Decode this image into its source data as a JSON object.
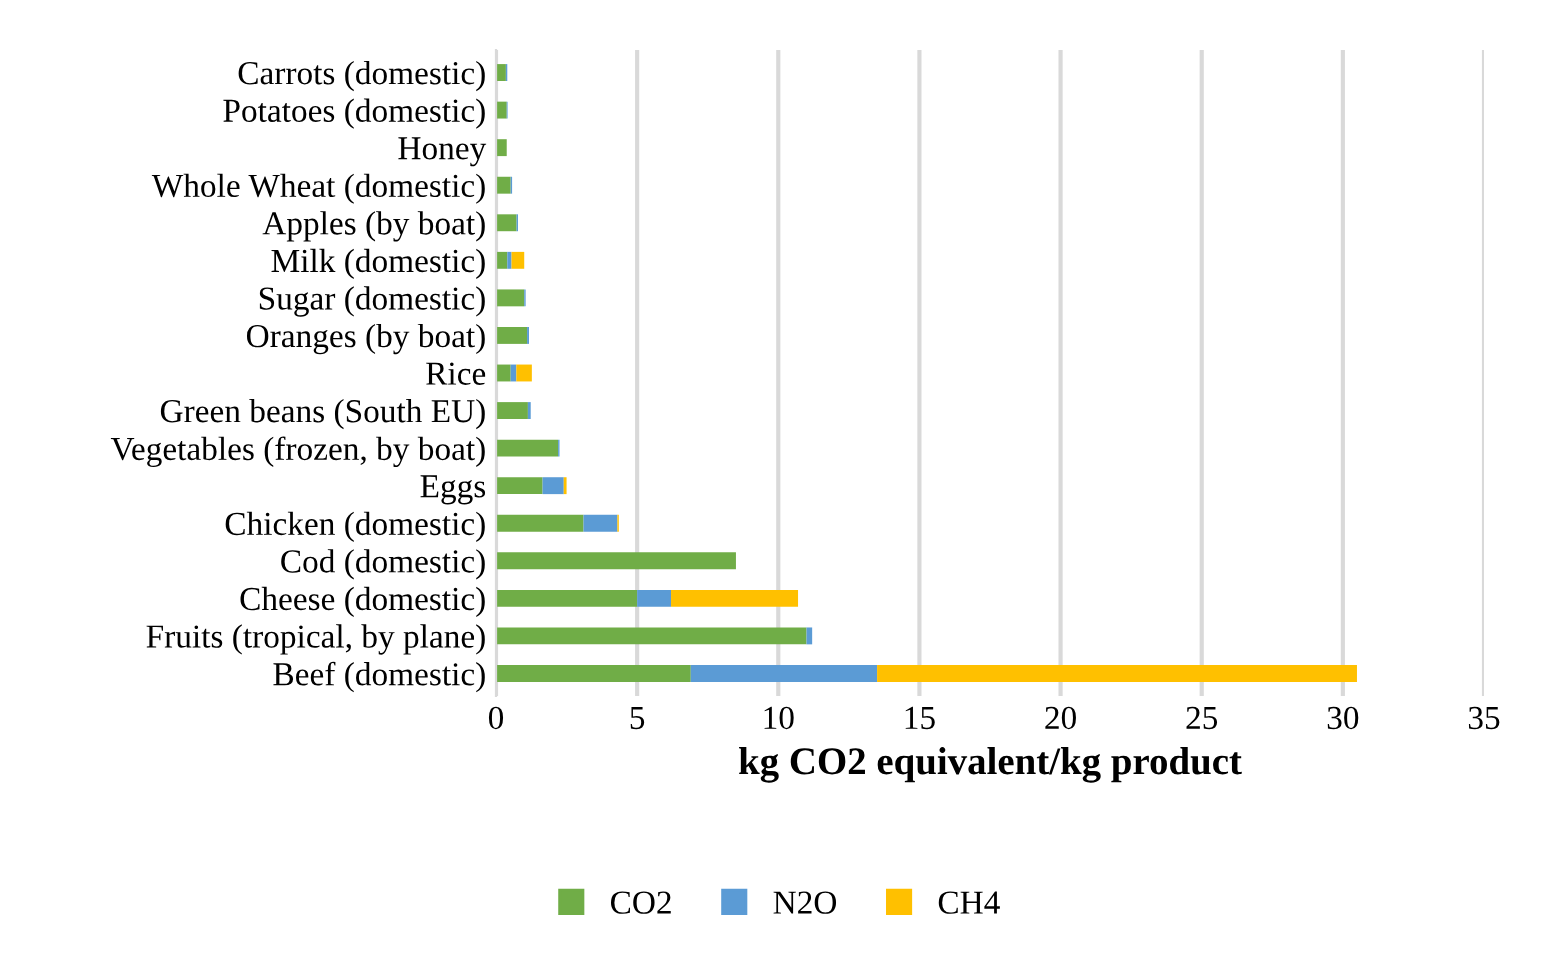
{
  "chart_data": {
    "type": "bar",
    "orientation": "horizontal",
    "stacked": true,
    "xlabel": "kg CO2 equivalent/kg product",
    "categories": [
      "Carrots (domestic)",
      "Potatoes (domestic)",
      "Honey",
      "Whole Wheat (domestic)",
      "Apples (by boat)",
      "Milk (domestic)",
      "Sugar (domestic)",
      "Oranges (by boat)",
      "Rice",
      "Green beans (South EU)",
      "Vegetables (frozen, by boat)",
      "Eggs",
      "Chicken (domestic)",
      "Cod (domestic)",
      "Cheese (domestic)",
      "Fruits (tropical, by plane)",
      "Beef (domestic)"
    ],
    "series": [
      {
        "name": "CO2",
        "color": "#70ad47",
        "values": [
          0.35,
          0.38,
          0.38,
          0.52,
          0.73,
          0.4,
          1.0,
          1.1,
          0.52,
          1.13,
          2.2,
          1.65,
          3.1,
          8.5,
          5.0,
          11.0,
          6.9
        ]
      },
      {
        "name": "N2O",
        "color": "#5b9bd5",
        "values": [
          0.05,
          0.03,
          0,
          0.05,
          0.05,
          0.15,
          0.05,
          0.07,
          0.2,
          0.1,
          0.05,
          0.75,
          1.2,
          0,
          1.2,
          0.2,
          6.6
        ]
      },
      {
        "name": "CH4",
        "color": "#ffc000",
        "values": [
          0,
          0,
          0,
          0,
          0,
          0.45,
          0,
          0,
          0.55,
          0,
          0,
          0.1,
          0.05,
          0,
          4.5,
          0,
          17.0
        ]
      }
    ],
    "xlim": [
      0,
      35
    ],
    "xticks": [
      0,
      5,
      10,
      15,
      20,
      25,
      30,
      35
    ],
    "grid": "x",
    "legend": "bottom"
  }
}
